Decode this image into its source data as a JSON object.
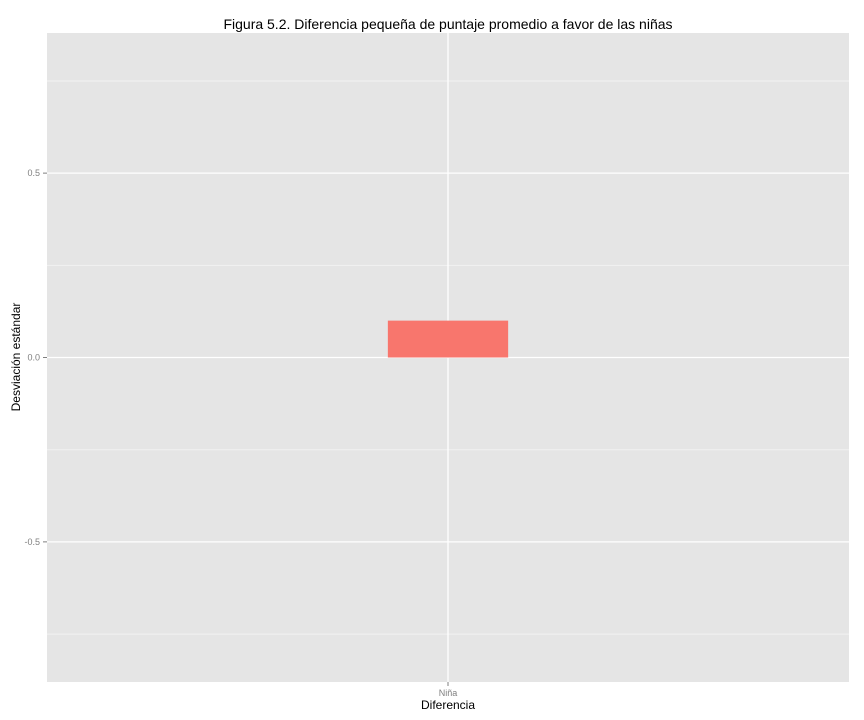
{
  "chart_data": {
    "type": "bar",
    "title": "Figura 5.2. Diferencia pequeña de puntaje promedio a favor de las niñas",
    "xlabel": "Diferencia",
    "ylabel": "Desviación estándar",
    "categories": [
      "Niña"
    ],
    "values": [
      0.1
    ],
    "ylim": [
      -0.88,
      0.88
    ],
    "yticks": [
      -0.5,
      0.0,
      0.5
    ],
    "ytick_labels": [
      "-0.5",
      "0.0",
      "0.5"
    ],
    "grid": true,
    "legend": "none",
    "colors": {
      "bar": "#F8766D",
      "panel": "#E5E5E5",
      "grid_major": "#FFFFFF",
      "grid_minor": "#F2F2F2",
      "tick_text": "#7F7F7F"
    }
  }
}
